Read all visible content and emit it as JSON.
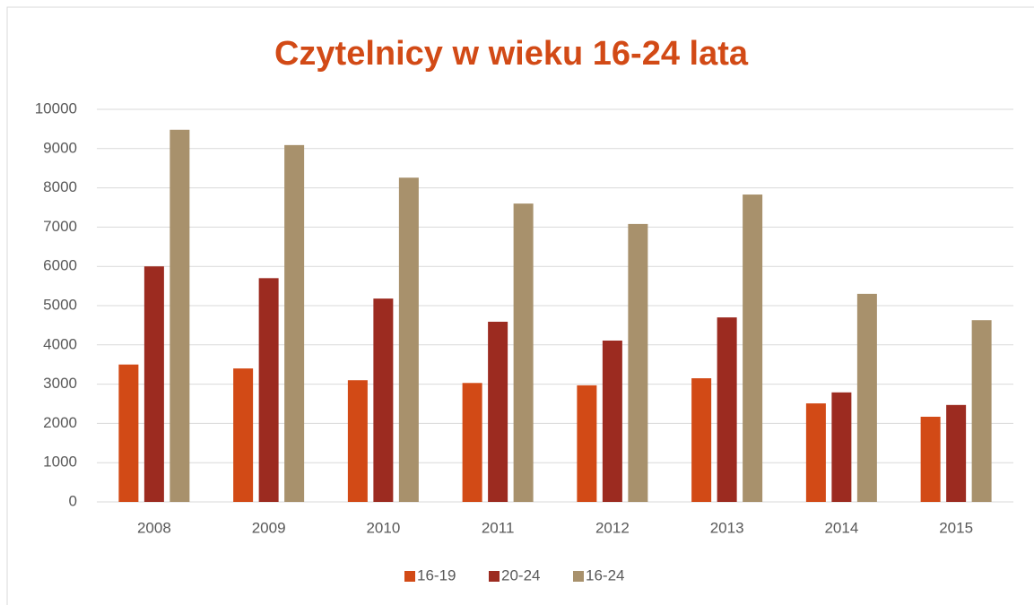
{
  "chart_data": {
    "type": "bar",
    "title": "Czytelnicy w wieku 16-24 lata",
    "categories": [
      "2008",
      "2009",
      "2010",
      "2011",
      "2012",
      "2013",
      "2014",
      "2015"
    ],
    "series": [
      {
        "name": "16-19",
        "color": "#d24a16",
        "values": [
          3500,
          3400,
          3100,
          3030,
          2970,
          3150,
          2510,
          2170
        ]
      },
      {
        "name": "20-24",
        "color": "#9c2b20",
        "values": [
          6000,
          5700,
          5180,
          4590,
          4110,
          4700,
          2790,
          2470
        ]
      },
      {
        "name": "16-24",
        "color": "#a8916c",
        "values": [
          9480,
          9090,
          8260,
          7600,
          7080,
          7830,
          5300,
          4630
        ]
      }
    ],
    "ylim": [
      0,
      10000
    ],
    "yticks": [
      0,
      1000,
      2000,
      3000,
      4000,
      5000,
      6000,
      7000,
      8000,
      9000,
      10000
    ],
    "grid": true,
    "legend": "bottom"
  }
}
